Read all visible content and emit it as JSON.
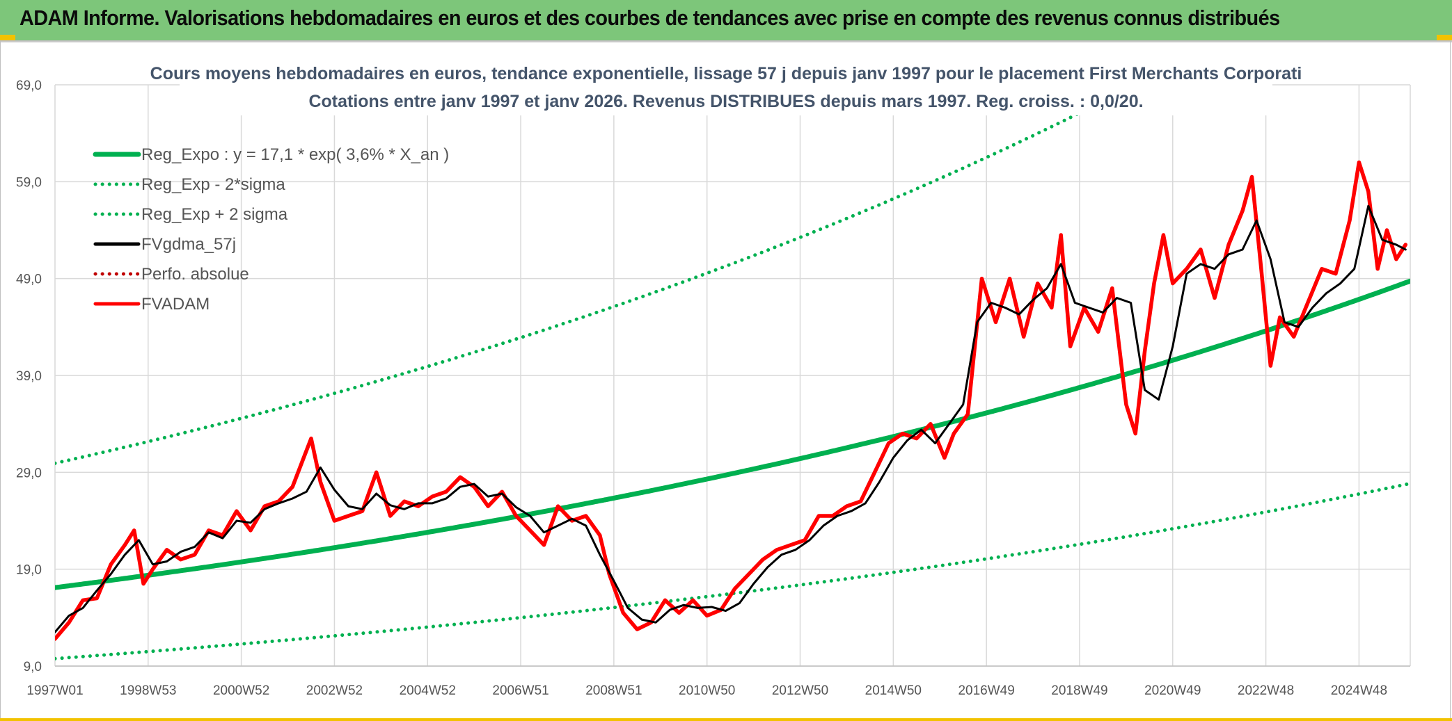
{
  "banner": {
    "title": "ADAM Informe. Valorisations hebdomadaires en euros et des courbes de tendances avec prise en compte des revenus connus distribués"
  },
  "colors": {
    "banner_bg": "#7dc67a",
    "accent_yellow": "#f2c200",
    "reg_green": "#00b050",
    "fvadam_red": "#ff0000",
    "gdma_black": "#000000",
    "perfo_red": "#c00000"
  },
  "chart_data": {
    "type": "line",
    "title_line1": "Cours moyens hebdomadaires en euros, tendance exponentielle, lissage 57 j depuis janv 1997 pour le placement First Merchants Corporati",
    "title_line2": "Cotations entre janv 1997 et janv 2026. Revenus DISTRIBUES depuis mars 1997. Reg. croiss. : 0,0/20.",
    "xlabel": "",
    "ylabel": "",
    "ylim": [
      9.0,
      69.0
    ],
    "yticks": [
      "69,0",
      "59,0",
      "49,0",
      "39,0",
      "29,0",
      "19,0",
      "9,0"
    ],
    "ytick_values": [
      69,
      59,
      49,
      39,
      29,
      19,
      9
    ],
    "xlim": [
      1997.0,
      2026.1
    ],
    "xticks": [
      "1997W01",
      "1998W53",
      "2000W52",
      "2002W52",
      "2004W52",
      "2006W51",
      "2008W51",
      "2010W50",
      "2012W50",
      "2014W50",
      "2016W49",
      "2018W49",
      "2020W49",
      "2022W48",
      "2024W48"
    ],
    "xtick_values": [
      1997.0,
      1999.0,
      2001.0,
      2003.0,
      2005.0,
      2007.0,
      2009.0,
      2011.0,
      2013.0,
      2015.0,
      2017.0,
      2019.0,
      2021.0,
      2023.0,
      2025.0
    ],
    "grid": true,
    "legend_position": "top-left",
    "series": [
      {
        "name": "Reg_Expo : y = 17,1 * exp( 3,6% *  X_an )",
        "style": "solid",
        "color": "#00b050",
        "kind": "exp",
        "a": 17.1,
        "b": 0.036,
        "sigma": 0.28,
        "sigma_mult": 0
      },
      {
        "name": "Reg_Exp - 2*sigma",
        "style": "dotted",
        "color": "#00b050",
        "kind": "exp",
        "a": 17.1,
        "b": 0.036,
        "sigma": 0.28,
        "sigma_mult": -2
      },
      {
        "name": "Reg_Exp + 2 sigma",
        "style": "dotted",
        "color": "#00b050",
        "kind": "exp",
        "a": 17.1,
        "b": 0.036,
        "sigma": 0.28,
        "sigma_mult": 2
      },
      {
        "name": "FVgdma_57j",
        "style": "solid",
        "color": "#000000",
        "kind": "points",
        "x": [
          1997.0,
          1997.3,
          1997.6,
          1997.9,
          1998.2,
          1998.5,
          1998.8,
          1999.1,
          1999.4,
          1999.7,
          2000.0,
          2000.3,
          2000.6,
          2000.9,
          2001.2,
          2001.5,
          2001.8,
          2002.1,
          2002.4,
          2002.7,
          2003.0,
          2003.3,
          2003.6,
          2003.9,
          2004.2,
          2004.5,
          2004.8,
          2005.1,
          2005.4,
          2005.7,
          2006.0,
          2006.3,
          2006.6,
          2006.9,
          2007.2,
          2007.5,
          2007.8,
          2008.1,
          2008.4,
          2008.7,
          2009.0,
          2009.3,
          2009.6,
          2009.9,
          2010.2,
          2010.5,
          2010.8,
          2011.1,
          2011.4,
          2011.7,
          2012.0,
          2012.3,
          2012.6,
          2012.9,
          2013.2,
          2013.5,
          2013.8,
          2014.1,
          2014.4,
          2014.7,
          2015.0,
          2015.3,
          2015.6,
          2015.9,
          2016.2,
          2016.5,
          2016.8,
          2017.1,
          2017.4,
          2017.7,
          2018.0,
          2018.3,
          2018.6,
          2018.9,
          2019.2,
          2019.5,
          2019.8,
          2020.1,
          2020.4,
          2020.7,
          2021.0,
          2021.3,
          2021.6,
          2021.9,
          2022.2,
          2022.5,
          2022.8,
          2023.1,
          2023.4,
          2023.7,
          2024.0,
          2024.3,
          2024.6,
          2024.9,
          2025.2,
          2025.5,
          2025.8,
          2026.0
        ],
        "y": [
          12.5,
          14.2,
          15.0,
          16.8,
          18.5,
          20.5,
          22.0,
          19.5,
          19.8,
          20.8,
          21.3,
          22.8,
          22.2,
          24.0,
          23.8,
          25.2,
          25.8,
          26.3,
          27.0,
          29.5,
          27.2,
          25.5,
          25.2,
          26.8,
          25.6,
          25.2,
          25.8,
          25.8,
          26.3,
          27.5,
          27.8,
          26.5,
          26.8,
          25.4,
          24.5,
          22.8,
          23.5,
          24.2,
          23.5,
          20.5,
          17.8,
          15.0,
          13.8,
          13.5,
          14.8,
          15.3,
          15.0,
          15.1,
          14.7,
          15.5,
          17.5,
          19.2,
          20.5,
          21.0,
          22.0,
          23.5,
          24.5,
          25.0,
          25.8,
          28.0,
          30.5,
          32.3,
          33.4,
          32.0,
          34.0,
          36.0,
          44.5,
          46.5,
          46.0,
          45.3,
          46.8,
          48.0,
          50.5,
          46.5,
          46.0,
          45.5,
          47.0,
          46.5,
          37.5,
          36.5,
          42.0,
          49.5,
          50.5,
          50.0,
          51.5,
          52.0,
          55.0,
          51.0,
          44.5,
          44.0,
          46.0,
          47.5,
          48.5,
          50.0,
          56.5,
          53.0,
          52.5,
          52.0
        ]
      },
      {
        "name": "Perfo. absolue",
        "style": "dotted",
        "color": "#c00000",
        "kind": "none"
      },
      {
        "name": "FVADAM",
        "style": "solid",
        "color": "#ff0000",
        "kind": "points",
        "x": [
          1997.0,
          1997.3,
          1997.6,
          1997.9,
          1998.2,
          1998.5,
          1998.7,
          1998.9,
          1999.1,
          1999.4,
          1999.7,
          2000.0,
          2000.3,
          2000.6,
          2000.9,
          2001.2,
          2001.5,
          2001.8,
          2002.1,
          2002.3,
          2002.5,
          2002.7,
          2003.0,
          2003.3,
          2003.6,
          2003.9,
          2004.2,
          2004.5,
          2004.8,
          2005.1,
          2005.4,
          2005.7,
          2006.0,
          2006.3,
          2006.6,
          2006.9,
          2007.2,
          2007.5,
          2007.8,
          2008.1,
          2008.4,
          2008.7,
          2008.9,
          2009.2,
          2009.5,
          2009.8,
          2010.1,
          2010.4,
          2010.7,
          2011.0,
          2011.3,
          2011.6,
          2011.9,
          2012.2,
          2012.5,
          2012.8,
          2013.1,
          2013.4,
          2013.7,
          2014.0,
          2014.3,
          2014.6,
          2014.9,
          2015.2,
          2015.5,
          2015.8,
          2016.1,
          2016.3,
          2016.6,
          2016.9,
          2017.2,
          2017.5,
          2017.8,
          2018.1,
          2018.4,
          2018.6,
          2018.8,
          2019.1,
          2019.4,
          2019.7,
          2020.0,
          2020.2,
          2020.4,
          2020.6,
          2020.8,
          2021.0,
          2021.3,
          2021.6,
          2021.9,
          2022.2,
          2022.5,
          2022.7,
          2022.9,
          2023.1,
          2023.3,
          2023.6,
          2023.9,
          2024.2,
          2024.5,
          2024.8,
          2025.0,
          2025.2,
          2025.4,
          2025.6,
          2025.8,
          2026.0
        ],
        "y": [
          11.8,
          13.5,
          15.8,
          16.0,
          19.5,
          21.5,
          23.0,
          17.5,
          19.0,
          21.0,
          20.0,
          20.5,
          23.0,
          22.5,
          25.0,
          23.0,
          25.5,
          26.0,
          27.5,
          30.0,
          32.5,
          28.0,
          24.0,
          24.5,
          25.0,
          29.0,
          24.5,
          26.0,
          25.5,
          26.5,
          27.0,
          28.5,
          27.5,
          25.5,
          27.0,
          24.5,
          23.0,
          21.5,
          25.5,
          24.0,
          24.5,
          22.5,
          18.5,
          14.5,
          12.8,
          13.5,
          15.8,
          14.5,
          15.8,
          14.2,
          14.8,
          17.0,
          18.5,
          20.0,
          21.0,
          21.5,
          22.0,
          24.5,
          24.5,
          25.5,
          26.0,
          29.0,
          32.0,
          33.0,
          32.5,
          34.0,
          30.5,
          33.0,
          35.0,
          49.0,
          44.5,
          49.0,
          43.0,
          48.5,
          46.0,
          53.5,
          42.0,
          46.0,
          43.5,
          48.0,
          36.0,
          33.0,
          41.5,
          48.5,
          53.5,
          48.5,
          50.0,
          52.0,
          47.0,
          52.5,
          56.0,
          59.5,
          50.0,
          40.0,
          45.0,
          43.0,
          46.5,
          50.0,
          49.5,
          55.0,
          61.0,
          58.0,
          50.0,
          54.0,
          51.0,
          52.5
        ]
      }
    ]
  }
}
